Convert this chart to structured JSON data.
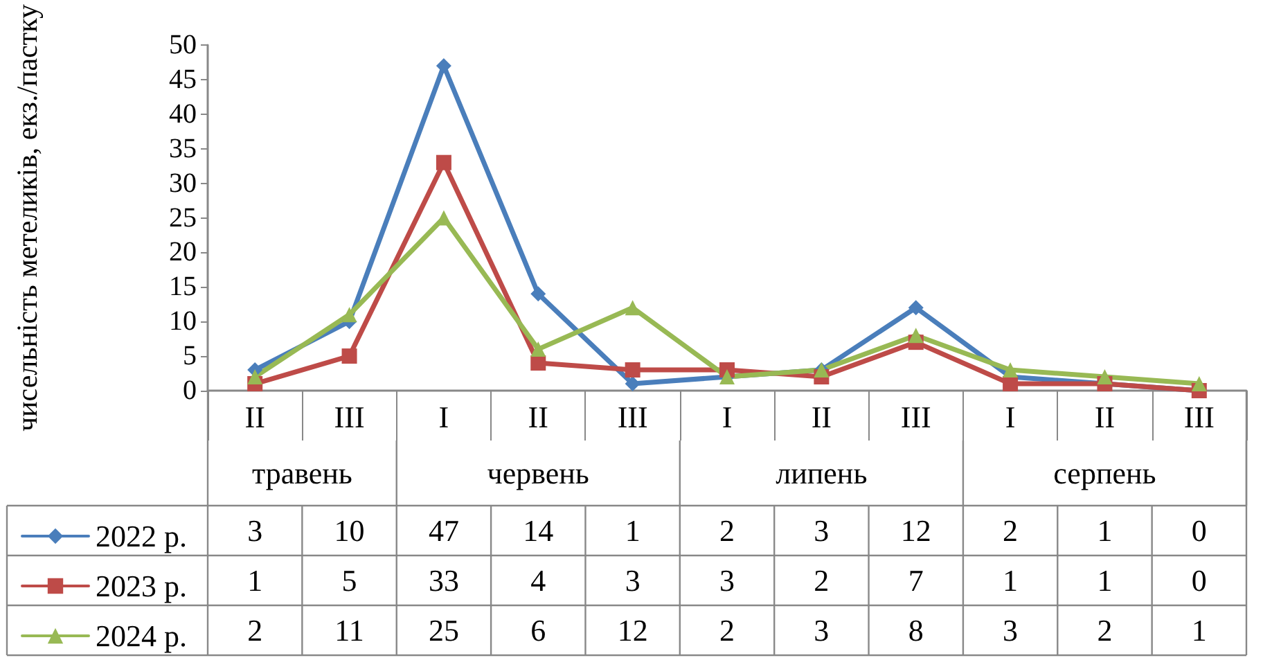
{
  "chart_data": {
    "type": "line",
    "ylabel": "чисельність метеликів, екз./пастку",
    "categories": [
      "II",
      "III",
      "I",
      "II",
      "III",
      "I",
      "II",
      "III",
      "I",
      "II",
      "III"
    ],
    "annotations": [
      "травень",
      "червень",
      "липень",
      "серпень"
    ],
    "series": [
      {
        "name": "2022 р.",
        "color": "#4a7ebb",
        "marker": "diamond",
        "values": [
          3,
          10,
          47,
          14,
          1,
          2,
          3,
          12,
          2,
          1,
          0
        ]
      },
      {
        "name": "2023 р.",
        "color": "#be4b48",
        "marker": "square",
        "values": [
          1,
          5,
          33,
          4,
          3,
          3,
          2,
          7,
          1,
          1,
          0
        ]
      },
      {
        "name": "2024 р.",
        "color": "#98b954",
        "marker": "triangle",
        "values": [
          2,
          11,
          25,
          6,
          12,
          2,
          3,
          8,
          3,
          2,
          1
        ]
      }
    ],
    "ylim": [
      0,
      50
    ],
    "yticks": [
      0,
      5,
      10,
      15,
      20,
      25,
      30,
      35,
      40,
      45,
      50
    ],
    "grid": false,
    "legend": "bottom left",
    "data_labels": true,
    "line_style": "solid"
  }
}
